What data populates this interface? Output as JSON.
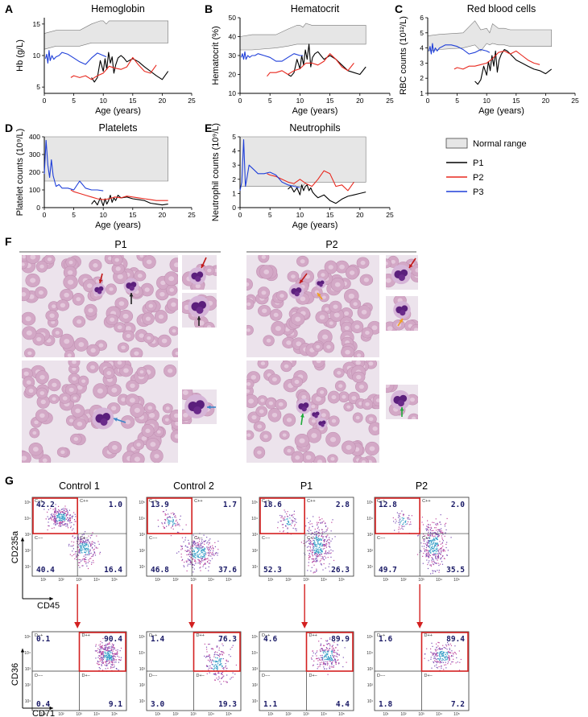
{
  "panel_letters": [
    "A",
    "B",
    "C",
    "D",
    "E",
    "F",
    "G"
  ],
  "legend": {
    "items": [
      {
        "label": "Normal range",
        "color": "#e6e6e6"
      },
      {
        "label": "P1",
        "color": "#000000"
      },
      {
        "label": "P2",
        "color": "#e8281e"
      },
      {
        "label": "P3",
        "color": "#1f3fd9"
      }
    ]
  },
  "chart_data": [
    {
      "type": "line",
      "panel": "A",
      "title": "Hemoglobin",
      "xlabel": "Age (years)",
      "ylabel": "Hb (g/L)",
      "xlim": [
        0,
        25
      ],
      "ylim": [
        4,
        16
      ],
      "xticks": [
        0,
        5,
        10,
        15,
        20,
        25
      ],
      "yticks": [
        5,
        10,
        15
      ],
      "ytick_labels": [
        "5",
        "10",
        "15"
      ],
      "normal_range": {
        "x": [
          0,
          2,
          6,
          8,
          9.5,
          10,
          10.5,
          11,
          12,
          13,
          14,
          15,
          21
        ],
        "lower": [
          11,
          11.5,
          11.5,
          12,
          12,
          12,
          12,
          12,
          12,
          12,
          12,
          12,
          12
        ],
        "upper": [
          13.5,
          14,
          14,
          15,
          15.5,
          15.5,
          15,
          15.5,
          15.5,
          15.5,
          15.5,
          15.5,
          15.5
        ]
      },
      "series": [
        {
          "name": "P1",
          "color": "#000000",
          "x": [
            8,
            8.5,
            9,
            9.5,
            10,
            10.3,
            10.6,
            10.9,
            11.2,
            11.5,
            11.8,
            12.1,
            12.5,
            13,
            13.5,
            14,
            15,
            16,
            17,
            18,
            19,
            20,
            21
          ],
          "y": [
            6.5,
            5.8,
            6.5,
            9.2,
            7.5,
            9.5,
            7.8,
            10.5,
            8.8,
            9.8,
            7.2,
            8.5,
            9.6,
            10,
            9.6,
            9,
            9.5,
            9,
            8.2,
            7.5,
            6.8,
            6.2,
            7.5
          ]
        },
        {
          "name": "P2",
          "color": "#e8281e",
          "x": [
            4.5,
            5,
            6,
            7,
            8,
            9,
            10,
            11,
            12,
            13,
            14,
            15,
            16,
            17,
            18,
            19
          ],
          "y": [
            6.5,
            6.8,
            6.5,
            6.8,
            6.2,
            6.8,
            7.2,
            8.3,
            8,
            7.8,
            8.2,
            9.7,
            8.5,
            7.5,
            7.2,
            8.5
          ]
        },
        {
          "name": "P3",
          "color": "#1f3fd9",
          "x": [
            0.2,
            0.4,
            0.6,
            0.8,
            1,
            1.3,
            1.6,
            2,
            2.5,
            3,
            4,
            5,
            6,
            7,
            8,
            9,
            10,
            10.5
          ],
          "y": [
            9.5,
            10.2,
            8.8,
            10.8,
            9.2,
            10,
            9.4,
            9.8,
            10,
            10.5,
            10.2,
            9.6,
            9,
            8.6,
            9.6,
            10.4,
            10,
            9.8
          ]
        }
      ]
    },
    {
      "type": "line",
      "panel": "B",
      "title": "Hematocrit",
      "xlabel": "Age (years)",
      "ylabel": "Hematocrit (%)",
      "xlim": [
        0,
        25
      ],
      "ylim": [
        10,
        50
      ],
      "xticks": [
        0,
        5,
        10,
        15,
        20,
        25
      ],
      "yticks": [
        10,
        20,
        30,
        40,
        50
      ],
      "normal_range": {
        "x": [
          0,
          2,
          6,
          8,
          9.5,
          10,
          10.5,
          11,
          12,
          13,
          14,
          15,
          21
        ],
        "lower": [
          33,
          33,
          34,
          35,
          36,
          36,
          36,
          36,
          36,
          36,
          36,
          36,
          36
        ],
        "upper": [
          40,
          41,
          41,
          44,
          46,
          46,
          45,
          47,
          46,
          46,
          46,
          46,
          46
        ]
      },
      "series": [
        {
          "name": "P1",
          "color": "#000000",
          "x": [
            8,
            8.5,
            9,
            9.5,
            10,
            10.3,
            10.6,
            10.9,
            11.2,
            11.5,
            11.8,
            12.1,
            12.5,
            13,
            13.5,
            14,
            15,
            16,
            17,
            18,
            19,
            20,
            21
          ],
          "y": [
            20,
            19,
            21,
            28,
            23,
            30,
            25,
            33,
            28,
            36,
            24,
            29,
            31,
            32,
            30,
            28,
            30,
            28,
            25,
            22,
            21,
            20,
            24
          ]
        },
        {
          "name": "P2",
          "color": "#e8281e",
          "x": [
            4.5,
            5,
            6,
            7,
            8,
            9,
            10,
            11,
            12,
            13,
            14,
            15,
            16,
            17,
            18,
            19
          ],
          "y": [
            19,
            21,
            21,
            22,
            20,
            22,
            23,
            26,
            26,
            25,
            27,
            31,
            28,
            24,
            22,
            26
          ]
        },
        {
          "name": "P3",
          "color": "#1f3fd9",
          "x": [
            0.2,
            0.4,
            0.6,
            0.8,
            1,
            1.3,
            1.6,
            2,
            2.5,
            3,
            4,
            5,
            6,
            7,
            8,
            9,
            10,
            10.5
          ],
          "y": [
            29,
            31,
            28,
            32,
            28,
            30,
            29,
            30,
            30,
            31,
            30,
            29,
            27,
            27,
            29,
            31,
            30,
            30
          ]
        }
      ]
    },
    {
      "type": "line",
      "panel": "C",
      "title": "Red blood cells",
      "xlabel": "Age (years)",
      "ylabel": "RBC counts (10¹²/L)",
      "xlim": [
        0,
        25
      ],
      "ylim": [
        1,
        6
      ],
      "xticks": [
        0,
        5,
        10,
        15,
        20,
        25
      ],
      "yticks": [
        1,
        2,
        3,
        4,
        5,
        6
      ],
      "normal_range": {
        "x": [
          0,
          2,
          6,
          8,
          9,
          10,
          10.5,
          11,
          12,
          13,
          14,
          15,
          21
        ],
        "lower": [
          3.8,
          3.9,
          4,
          4.2,
          3.8,
          4.3,
          4.2,
          4.3,
          4.2,
          4.2,
          4.1,
          4.1,
          4.1
        ],
        "upper": [
          4.8,
          4.9,
          5,
          5.8,
          5.2,
          5.3,
          5,
          5.6,
          5.3,
          5.3,
          5.2,
          5.2,
          5.2
        ]
      },
      "series": [
        {
          "name": "P1",
          "color": "#000000",
          "x": [
            8,
            8.5,
            9,
            9.5,
            10,
            10.3,
            10.6,
            10.9,
            11.2,
            11.5,
            11.8,
            12.1,
            12.5,
            13,
            13.5,
            14,
            15,
            16,
            17,
            18,
            19,
            20,
            21
          ],
          "y": [
            1.8,
            1.6,
            1.9,
            2.8,
            2.2,
            3.1,
            2.5,
            3.5,
            2.8,
            3.8,
            2.4,
            3.2,
            3.6,
            3.9,
            3.8,
            3.6,
            3.2,
            3,
            2.8,
            2.6,
            2.5,
            2.3,
            2.6
          ]
        },
        {
          "name": "P2",
          "color": "#e8281e",
          "x": [
            4.5,
            5,
            6,
            7,
            8,
            9,
            10,
            11,
            12,
            13,
            14,
            15,
            16,
            17,
            18,
            19
          ],
          "y": [
            2.6,
            2.7,
            2.6,
            2.8,
            2.8,
            2.9,
            3,
            3.3,
            3.7,
            3.8,
            3.6,
            3.8,
            3.5,
            3.2,
            3,
            2.9
          ]
        },
        {
          "name": "P3",
          "color": "#1f3fd9",
          "x": [
            0.2,
            0.4,
            0.6,
            0.8,
            1,
            1.3,
            1.6,
            2,
            2.5,
            3,
            4,
            5,
            6,
            7,
            8,
            9,
            10,
            10.5
          ],
          "y": [
            3.8,
            4.1,
            3.6,
            4.3,
            3.7,
            4,
            3.8,
            4,
            4.1,
            4.2,
            4.2,
            4.1,
            3.9,
            3.6,
            3.7,
            3.9,
            3.8,
            3.7
          ]
        }
      ]
    },
    {
      "type": "line",
      "panel": "D",
      "title": "Platelets",
      "xlabel": "Age (years)",
      "ylabel": "Platelet counts (10⁹/L)",
      "xlim": [
        0,
        25
      ],
      "ylim": [
        0,
        400
      ],
      "xticks": [
        0,
        5,
        10,
        15,
        20,
        25
      ],
      "yticks": [
        0,
        100,
        200,
        300,
        400
      ],
      "normal_range": {
        "x": [
          0,
          21
        ],
        "lower": [
          150,
          150
        ],
        "upper": [
          400,
          400
        ]
      },
      "series": [
        {
          "name": "P1",
          "color": "#000000",
          "x": [
            8,
            8.5,
            9,
            9.5,
            10,
            10.3,
            10.6,
            10.9,
            11.2,
            11.5,
            11.8,
            12.1,
            12.5,
            13,
            14,
            15,
            16,
            17,
            18,
            19,
            20,
            21
          ],
          "y": [
            20,
            40,
            15,
            55,
            10,
            50,
            20,
            40,
            70,
            30,
            55,
            40,
            70,
            55,
            60,
            50,
            45,
            40,
            25,
            20,
            15,
            20
          ]
        },
        {
          "name": "P2",
          "color": "#e8281e",
          "x": [
            4.5,
            5,
            6,
            7,
            8,
            9,
            10,
            11,
            12,
            13,
            14,
            15,
            16,
            17,
            18,
            19,
            20,
            21
          ],
          "y": [
            100,
            90,
            80,
            70,
            60,
            50,
            45,
            50,
            60,
            55,
            65,
            60,
            55,
            50,
            45,
            40,
            40,
            40
          ]
        },
        {
          "name": "P3",
          "color": "#1f3fd9",
          "x": [
            0,
            0.3,
            0.6,
            0.9,
            1.2,
            1.5,
            2,
            2.5,
            3,
            4,
            5,
            6,
            7,
            8,
            9,
            10
          ],
          "y": [
            190,
            380,
            240,
            170,
            270,
            180,
            120,
            130,
            110,
            110,
            100,
            150,
            110,
            100,
            100,
            95
          ]
        }
      ]
    },
    {
      "type": "line",
      "panel": "E",
      "title": "Neutrophils",
      "xlabel": "Age (years)",
      "ylabel": "Neutrophil counts (10⁹/L)",
      "xlim": [
        0,
        25
      ],
      "ylim": [
        0,
        5
      ],
      "xticks": [
        0,
        5,
        10,
        15,
        20,
        25
      ],
      "yticks": [
        0,
        1,
        2,
        3,
        4,
        5
      ],
      "normal_range": {
        "x": [
          0,
          8,
          8.5,
          9,
          9.5,
          10,
          10.5,
          11,
          21
        ],
        "lower": [
          1.5,
          1.5,
          1.5,
          1.6,
          1.5,
          1.5,
          1.5,
          1.8,
          1.8
        ],
        "upper": [
          5,
          5,
          5,
          5,
          5,
          5,
          5,
          5,
          5
        ]
      },
      "series": [
        {
          "name": "P1",
          "color": "#000000",
          "x": [
            8,
            8.5,
            9,
            9.5,
            10,
            10.3,
            10.6,
            10.9,
            11.2,
            11.5,
            11.8,
            12.1,
            12.5,
            13,
            14,
            15,
            16,
            17,
            18,
            19,
            20,
            21
          ],
          "y": [
            1.3,
            1.5,
            1.1,
            1.4,
            0.9,
            1.6,
            1.2,
            1.5,
            1.6,
            1.2,
            1.4,
            1.1,
            0.9,
            0.7,
            0.9,
            0.5,
            0.3,
            0.6,
            0.8,
            0.9,
            1,
            1.1
          ]
        },
        {
          "name": "P2",
          "color": "#e8281e",
          "x": [
            4.5,
            5,
            6,
            7,
            8,
            9,
            10,
            11,
            12,
            13,
            14,
            15,
            16,
            17,
            18,
            19
          ],
          "y": [
            2.4,
            2.3,
            2.2,
            2,
            1.8,
            1.7,
            2,
            1.7,
            1.5,
            2,
            2.6,
            2.4,
            1.5,
            1.6,
            1.2,
            1.8
          ]
        },
        {
          "name": "P3",
          "color": "#1f3fd9",
          "x": [
            0,
            0.3,
            0.6,
            0.9,
            1.2,
            1.5,
            2,
            2.5,
            3,
            4,
            5,
            6,
            7,
            8,
            9,
            10
          ],
          "y": [
            1.2,
            1.8,
            4.8,
            1.5,
            2.2,
            3,
            2.8,
            2.6,
            2.4,
            2.4,
            2.5,
            2.3,
            1.8,
            1.6,
            1.5,
            1.4
          ]
        }
      ]
    }
  ],
  "smears": {
    "groups": [
      {
        "label": "P1"
      },
      {
        "label": "P2"
      }
    ]
  },
  "flow": {
    "columns": [
      "Control 1",
      "Control 2",
      "P1",
      "P2"
    ],
    "top_axis": {
      "y": "CD235a",
      "x": "CD45"
    },
    "bottom_axis": {
      "y": "CD36",
      "x": "CD71"
    },
    "top_quadrant_labels": [
      "C−+",
      "C++",
      "C−−",
      "C+−"
    ],
    "bottom_quadrant_labels": [
      "D−+",
      "D++",
      "D−−",
      "D+−"
    ],
    "top": [
      {
        "tl": "42.2",
        "tr": "1.0",
        "bl": "40.4",
        "br": "16.4"
      },
      {
        "tl": "13.9",
        "tr": "1.7",
        "bl": "46.8",
        "br": "37.6"
      },
      {
        "tl": "18.6",
        "tr": "2.8",
        "bl": "52.3",
        "br": "26.3"
      },
      {
        "tl": "12.8",
        "tr": "2.0",
        "bl": "49.7",
        "br": "35.5"
      }
    ],
    "bottom": [
      {
        "tl": "0.1",
        "tr": "90.4",
        "bl": "0.4",
        "br": "9.1"
      },
      {
        "tl": "1.4",
        "tr": "76.3",
        "bl": "3.0",
        "br": "19.3"
      },
      {
        "tl": "4.6",
        "tr": "89.9",
        "bl": "1.1",
        "br": "4.4"
      },
      {
        "tl": "1.6",
        "tr": "89.4",
        "bl": "1.8",
        "br": "7.2"
      }
    ],
    "tick_labels": [
      "10¹",
      "10²",
      "10³",
      "10⁴",
      "10⁵"
    ]
  }
}
